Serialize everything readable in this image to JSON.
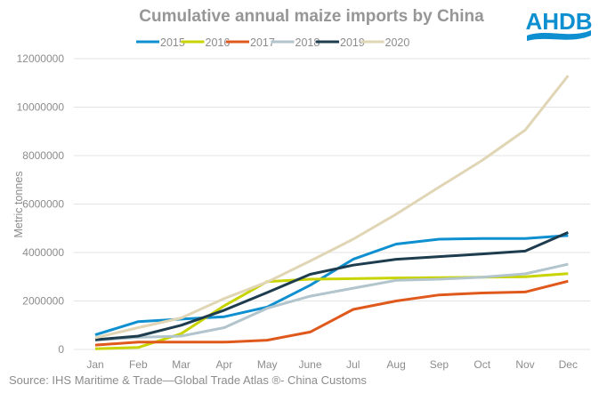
{
  "chart_data": {
    "type": "line",
    "title": "Cumulative annual maize imports by China",
    "xlabel": "",
    "ylabel": "Metric tonnes",
    "ylim": [
      0,
      12000000
    ],
    "yticks": [
      "0",
      "2000000",
      "4000000",
      "6000000",
      "8000000",
      "10000000",
      "12000000"
    ],
    "ytick_values": [
      0,
      2000000,
      4000000,
      6000000,
      8000000,
      10000000,
      12000000
    ],
    "grid": true,
    "legend_position": "top",
    "categories": [
      "Jan",
      "Feb",
      "Mar",
      "Apr",
      "May",
      "June",
      "Jul",
      "Aug",
      "Sep",
      "Oct",
      "Nov",
      "Dec"
    ],
    "series": [
      {
        "name": "2015",
        "color": "#0e8fd0",
        "values": [
          600000,
          1150000,
          1250000,
          1350000,
          1750000,
          2650000,
          3720000,
          4350000,
          4550000,
          4580000,
          4580000,
          4700000
        ]
      },
      {
        "name": "2016",
        "color": "#c8d400",
        "values": [
          30000,
          80000,
          650000,
          1800000,
          2800000,
          2900000,
          2920000,
          2950000,
          2960000,
          2980000,
          3000000,
          3130000
        ]
      },
      {
        "name": "2017",
        "color": "#e0591c",
        "values": [
          180000,
          300000,
          300000,
          300000,
          380000,
          720000,
          1650000,
          2000000,
          2250000,
          2330000,
          2370000,
          2820000
        ]
      },
      {
        "name": "2018",
        "color": "#b2c4cc",
        "values": [
          380000,
          500000,
          550000,
          900000,
          1700000,
          2200000,
          2530000,
          2850000,
          2900000,
          2980000,
          3120000,
          3520000
        ]
      },
      {
        "name": "2019",
        "color": "#1d3c4e",
        "values": [
          400000,
          550000,
          1000000,
          1620000,
          2350000,
          3100000,
          3480000,
          3720000,
          3830000,
          3940000,
          4060000,
          4830000
        ]
      },
      {
        "name": "2020",
        "color": "#e0d5b5",
        "values": [
          480000,
          900000,
          1300000,
          2100000,
          2780000,
          3650000,
          4550000,
          5580000,
          6700000,
          7800000,
          9050000,
          11300000
        ]
      }
    ]
  },
  "logo": {
    "text": "AHDB",
    "color": "#0e8fd0"
  },
  "source": "Source: IHS Maritime & Trade—Global Trade Atlas ®- China Customs"
}
